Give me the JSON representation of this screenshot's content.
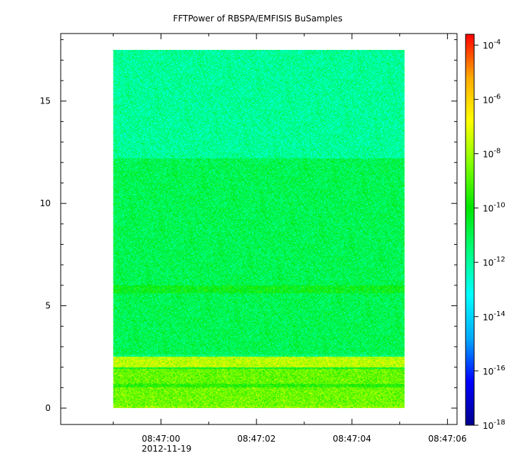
{
  "chart_data": {
    "type": "heatmap",
    "title": "FFTPower of RBSPA/EMFISIS  BuSamples",
    "xlabel": "",
    "ylabel": "",
    "x_axis": {
      "type": "time",
      "range": [
        "08:46:57.9",
        "08:47:06.2"
      ],
      "data_range": [
        "08:46:59.0",
        "08:47:05.1"
      ],
      "major_ticks": [
        {
          "value": "08:47:00",
          "label": "08:47:00",
          "sublabel": "2012-11-19"
        },
        {
          "value": "08:47:02",
          "label": "08:47:02",
          "sublabel": ""
        },
        {
          "value": "08:47:04",
          "label": "08:47:04",
          "sublabel": ""
        },
        {
          "value": "08:47:06",
          "label": "08:47:06",
          "sublabel": ""
        }
      ],
      "minor_ticks": [
        "08:46:59",
        "08:47:01",
        "08:47:03",
        "08:47:05"
      ]
    },
    "y_axis": {
      "range": [
        -0.8,
        18.3
      ],
      "data_range": [
        0,
        17.5
      ],
      "major_ticks": [
        0,
        5,
        10,
        15
      ],
      "minor_ticks": [
        1,
        2,
        3,
        4,
        6,
        7,
        8,
        9,
        11,
        12,
        13,
        14,
        16,
        17,
        18
      ]
    },
    "colorbar": {
      "scale": "log",
      "range_exponent": [
        -18,
        -3.6
      ],
      "ticks": [
        {
          "base": "10",
          "exp": "-4"
        },
        {
          "base": "10",
          "exp": "-6"
        },
        {
          "base": "10",
          "exp": "-8"
        },
        {
          "base": "10",
          "exp": "-10"
        },
        {
          "base": "10",
          "exp": "-12"
        },
        {
          "base": "10",
          "exp": "-14"
        },
        {
          "base": "10",
          "exp": "-16"
        },
        {
          "base": "10",
          "exp": "-18"
        }
      ],
      "colors": [
        "#00008c",
        "#0000ff",
        "#00aaff",
        "#00ffff",
        "#00ff7f",
        "#00e600",
        "#7fff00",
        "#ffff00",
        "#ffaa00",
        "#ff0000"
      ]
    },
    "bands": [
      {
        "y_from": 12.2,
        "y_to": 17.5,
        "log10_power": -11.9
      },
      {
        "y_from": 2.6,
        "y_to": 12.2,
        "log10_power": -11.0
      },
      {
        "y_from": 5.6,
        "y_to": 6.0,
        "log10_power": -10.2
      },
      {
        "y_from": 2.0,
        "y_to": 2.5,
        "log10_power": -7.6
      },
      {
        "y_from": 1.9,
        "y_to": 2.0,
        "log10_power": -10.5
      },
      {
        "y_from": 1.2,
        "y_to": 1.9,
        "log10_power": -8.7
      },
      {
        "y_from": 1.0,
        "y_to": 1.2,
        "log10_power": -9.6
      },
      {
        "y_from": 0.1,
        "y_to": 1.0,
        "log10_power": -8.6
      },
      {
        "y_from": 0.0,
        "y_to": 0.1,
        "log10_power": -8.2
      }
    ]
  }
}
